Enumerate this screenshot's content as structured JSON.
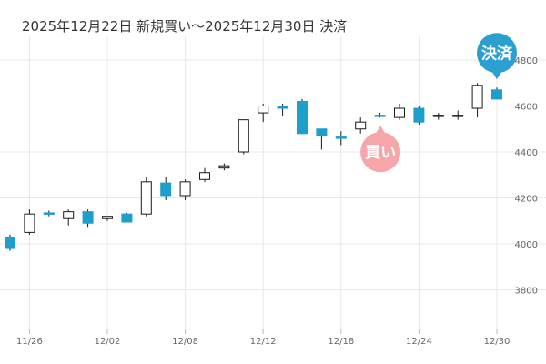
{
  "title": "2025年12月22日 新規買い～2025年12月30日 決済",
  "colors": {
    "up_fill": "#ffffff",
    "up_stroke": "#1a1a1a",
    "down_fill": "#1e9ecb",
    "grid": "#e8e8e8",
    "buy_marker": "#f4a6aa",
    "settle_marker": "#2a9fd0",
    "tick_text": "#666666"
  },
  "chart_data": {
    "type": "candlestick",
    "title": "2025年12月22日 新規買い～2025年12月30日 決済",
    "xlabel": "",
    "ylabel": "",
    "ylim": [
      3650,
      4850
    ],
    "y_ticks": [
      "3800",
      "4000",
      "4200",
      "4400",
      "4600",
      "4800"
    ],
    "x_tick_labels": [
      {
        "label": "11/26",
        "index": 1
      },
      {
        "label": "12/02",
        "index": 5
      },
      {
        "label": "12/08",
        "index": 9
      },
      {
        "label": "12/12",
        "index": 13
      },
      {
        "label": "12/18",
        "index": 17
      },
      {
        "label": "12/24",
        "index": 21
      },
      {
        "label": "12/30",
        "index": 25
      }
    ],
    "grid": true,
    "candles": [
      {
        "open": 4030,
        "high": 4040,
        "low": 3970,
        "close": 3980
      },
      {
        "open": 4050,
        "high": 4150,
        "low": 4040,
        "close": 4130
      },
      {
        "open": 4135,
        "high": 4145,
        "low": 4120,
        "close": 4130
      },
      {
        "open": 4110,
        "high": 4150,
        "low": 4080,
        "close": 4140
      },
      {
        "open": 4140,
        "high": 4150,
        "low": 4070,
        "close": 4090
      },
      {
        "open": 4110,
        "high": 4120,
        "low": 4100,
        "close": 4120
      },
      {
        "open": 4130,
        "high": 4135,
        "low": 4095,
        "close": 4095
      },
      {
        "open": 4130,
        "high": 4290,
        "low": 4120,
        "close": 4270
      },
      {
        "open": 4265,
        "high": 4290,
        "low": 4190,
        "close": 4210
      },
      {
        "open": 4210,
        "high": 4280,
        "low": 4190,
        "close": 4270
      },
      {
        "open": 4280,
        "high": 4330,
        "low": 4270,
        "close": 4310
      },
      {
        "open": 4330,
        "high": 4350,
        "low": 4320,
        "close": 4340
      },
      {
        "open": 4400,
        "high": 4540,
        "low": 4390,
        "close": 4540
      },
      {
        "open": 4570,
        "high": 4610,
        "low": 4530,
        "close": 4600
      },
      {
        "open": 4600,
        "high": 4610,
        "low": 4555,
        "close": 4590
      },
      {
        "open": 4620,
        "high": 4630,
        "low": 4480,
        "close": 4480
      },
      {
        "open": 4500,
        "high": 4500,
        "low": 4410,
        "close": 4470
      },
      {
        "open": 4465,
        "high": 4490,
        "low": 4430,
        "close": 4460
      },
      {
        "open": 4500,
        "high": 4550,
        "low": 4480,
        "close": 4530
      },
      {
        "open": 4560,
        "high": 4570,
        "low": 4550,
        "close": 4555
      },
      {
        "open": 4550,
        "high": 4610,
        "low": 4540,
        "close": 4590
      },
      {
        "open": 4590,
        "high": 4600,
        "low": 4520,
        "close": 4530
      },
      {
        "open": 4555,
        "high": 4570,
        "low": 4540,
        "close": 4560
      },
      {
        "open": 4555,
        "high": 4580,
        "low": 4540,
        "close": 4560
      },
      {
        "open": 4590,
        "high": 4700,
        "low": 4550,
        "close": 4690
      },
      {
        "open": 4670,
        "high": 4680,
        "low": 4630,
        "close": 4630
      }
    ],
    "annotations": [
      {
        "label": "買い",
        "index": 19,
        "position": "below",
        "color": "#f4a6aa"
      },
      {
        "label": "決済",
        "index": 25,
        "position": "above",
        "color": "#2a9fd0"
      }
    ]
  }
}
